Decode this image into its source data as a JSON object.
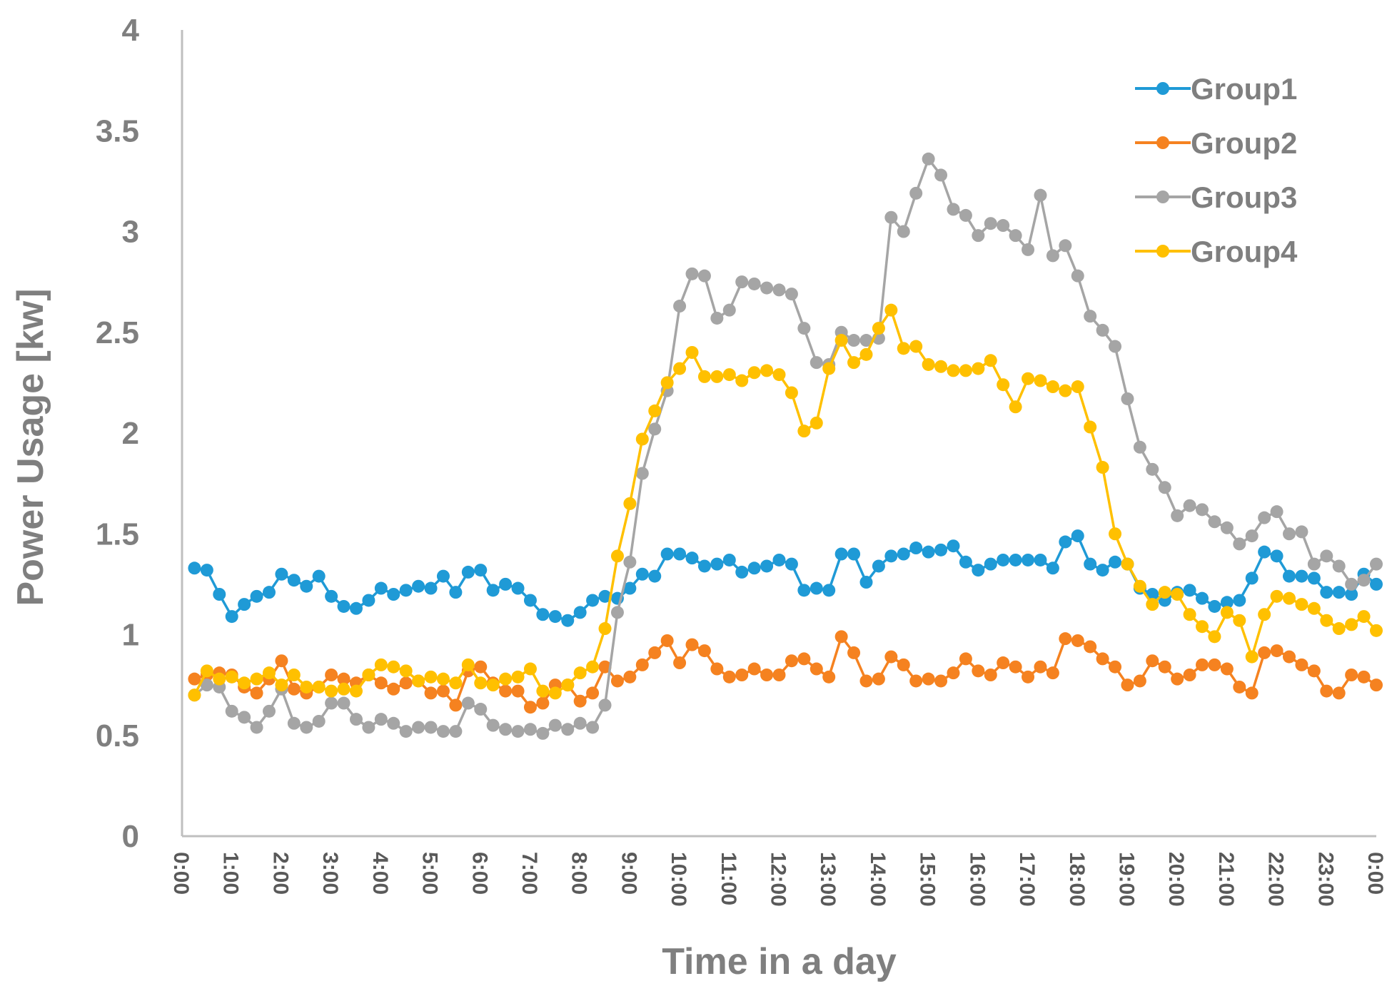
{
  "chart_data": {
    "type": "line",
    "title": "",
    "xlabel": "Time in a day",
    "ylabel": "Power Usage [kw]",
    "ylim": [
      0,
      4
    ],
    "yticks": [
      "0",
      "0.5",
      "1",
      "1.5",
      "2",
      "2.5",
      "3",
      "3.5",
      "4"
    ],
    "xticks": [
      "0:00",
      "1:00",
      "2:00",
      "3:00",
      "4:00",
      "5:00",
      "6:00",
      "7:00",
      "8:00",
      "9:00",
      "10:00",
      "11:00",
      "12:00",
      "13:00",
      "14:00",
      "15:00",
      "16:00",
      "17:00",
      "18:00",
      "19:00",
      "20:00",
      "21:00",
      "22:00",
      "23:00",
      "0:00"
    ],
    "grid": false,
    "legend_position": "top-right",
    "x_hours": [
      0.25,
      0.5,
      0.75,
      1,
      1.25,
      1.5,
      1.75,
      2,
      2.25,
      2.5,
      2.75,
      3,
      3.25,
      3.5,
      3.75,
      4,
      4.25,
      4.5,
      4.75,
      5,
      5.25,
      5.5,
      5.75,
      6,
      6.25,
      6.5,
      6.75,
      7,
      7.25,
      7.5,
      7.75,
      8,
      8.25,
      8.5,
      8.75,
      9,
      9.25,
      9.5,
      9.75,
      10,
      10.25,
      10.5,
      10.75,
      11,
      11.25,
      11.5,
      11.75,
      12,
      12.25,
      12.5,
      12.75,
      13,
      13.25,
      13.5,
      13.75,
      14,
      14.25,
      14.5,
      14.75,
      15,
      15.25,
      15.5,
      15.75,
      16,
      16.25,
      16.5,
      16.75,
      17,
      17.25,
      17.5,
      17.75,
      18,
      18.25,
      18.5,
      18.75,
      19,
      19.25,
      19.5,
      19.75,
      20,
      20.25,
      20.5,
      20.75,
      21,
      21.25,
      21.5,
      21.75,
      22,
      22.25,
      22.5,
      22.75,
      23,
      23.25,
      23.5,
      23.75,
      24
    ],
    "series": [
      {
        "name": "Group1",
        "color": "#1f9ad6",
        "values": [
          1.33,
          1.32,
          1.2,
          1.09,
          1.15,
          1.19,
          1.21,
          1.3,
          1.27,
          1.24,
          1.29,
          1.19,
          1.14,
          1.13,
          1.17,
          1.23,
          1.2,
          1.22,
          1.24,
          1.23,
          1.29,
          1.21,
          1.31,
          1.32,
          1.22,
          1.25,
          1.23,
          1.17,
          1.1,
          1.09,
          1.07,
          1.11,
          1.17,
          1.19,
          1.18,
          1.23,
          1.3,
          1.29,
          1.4,
          1.4,
          1.38,
          1.34,
          1.35,
          1.37,
          1.31,
          1.33,
          1.34,
          1.37,
          1.35,
          1.22,
          1.23,
          1.22,
          1.4,
          1.4,
          1.26,
          1.34,
          1.39,
          1.4,
          1.43,
          1.41,
          1.42,
          1.44,
          1.36,
          1.32,
          1.35,
          1.37,
          1.37,
          1.37,
          1.37,
          1.33,
          1.46,
          1.49,
          1.35,
          1.32,
          1.36,
          1.35,
          1.23,
          1.2,
          1.17,
          1.21,
          1.22,
          1.18,
          1.14,
          1.16,
          1.17,
          1.28,
          1.41,
          1.39,
          1.29,
          1.29,
          1.28,
          1.21,
          1.21,
          1.2,
          1.3,
          1.25
        ]
      },
      {
        "name": "Group2",
        "color": "#f58220",
        "values": [
          0.78,
          0.8,
          0.81,
          0.8,
          0.74,
          0.71,
          0.78,
          0.87,
          0.73,
          0.71,
          0.74,
          0.8,
          0.78,
          0.76,
          0.8,
          0.76,
          0.73,
          0.76,
          0.77,
          0.71,
          0.72,
          0.65,
          0.82,
          0.84,
          0.76,
          0.72,
          0.72,
          0.64,
          0.66,
          0.75,
          0.75,
          0.67,
          0.71,
          0.84,
          0.77,
          0.79,
          0.85,
          0.91,
          0.97,
          0.86,
          0.95,
          0.92,
          0.83,
          0.79,
          0.8,
          0.83,
          0.8,
          0.8,
          0.87,
          0.88,
          0.83,
          0.79,
          0.99,
          0.91,
          0.77,
          0.78,
          0.89,
          0.85,
          0.77,
          0.78,
          0.77,
          0.81,
          0.88,
          0.82,
          0.8,
          0.86,
          0.84,
          0.79,
          0.84,
          0.81,
          0.98,
          0.97,
          0.94,
          0.88,
          0.84,
          0.75,
          0.77,
          0.87,
          0.84,
          0.78,
          0.8,
          0.85,
          0.85,
          0.83,
          0.74,
          0.71,
          0.91,
          0.92,
          0.89,
          0.85,
          0.82,
          0.72,
          0.71,
          0.8,
          0.79,
          0.75
        ]
      },
      {
        "name": "Group3",
        "color": "#a5a5a5",
        "values": [
          0.7,
          0.75,
          0.74,
          0.62,
          0.59,
          0.54,
          0.62,
          0.73,
          0.56,
          0.54,
          0.57,
          0.66,
          0.66,
          0.58,
          0.54,
          0.58,
          0.56,
          0.52,
          0.54,
          0.54,
          0.52,
          0.52,
          0.66,
          0.63,
          0.55,
          0.53,
          0.52,
          0.53,
          0.51,
          0.55,
          0.53,
          0.56,
          0.54,
          0.65,
          1.11,
          1.36,
          1.8,
          2.02,
          2.21,
          2.63,
          2.79,
          2.78,
          2.57,
          2.61,
          2.75,
          2.74,
          2.72,
          2.71,
          2.69,
          2.52,
          2.35,
          2.34,
          2.5,
          2.46,
          2.46,
          2.47,
          3.07,
          3.0,
          3.19,
          3.36,
          3.28,
          3.11,
          3.08,
          2.98,
          3.04,
          3.03,
          2.98,
          2.91,
          3.18,
          2.88,
          2.93,
          2.78,
          2.58,
          2.51,
          2.43,
          2.17,
          1.93,
          1.82,
          1.73,
          1.59,
          1.64,
          1.62,
          1.56,
          1.53,
          1.45,
          1.49,
          1.58,
          1.61,
          1.5,
          1.51,
          1.35,
          1.39,
          1.34,
          1.25,
          1.27,
          1.35
        ]
      },
      {
        "name": "Group4",
        "color": "#ffc000",
        "values": [
          0.7,
          0.82,
          0.78,
          0.79,
          0.76,
          0.78,
          0.81,
          0.75,
          0.8,
          0.74,
          0.74,
          0.72,
          0.73,
          0.72,
          0.8,
          0.85,
          0.84,
          0.82,
          0.77,
          0.79,
          0.78,
          0.76,
          0.85,
          0.76,
          0.75,
          0.78,
          0.79,
          0.83,
          0.72,
          0.71,
          0.75,
          0.81,
          0.84,
          1.03,
          1.39,
          1.65,
          1.97,
          2.11,
          2.25,
          2.32,
          2.4,
          2.28,
          2.28,
          2.29,
          2.26,
          2.3,
          2.31,
          2.29,
          2.2,
          2.01,
          2.05,
          2.32,
          2.46,
          2.35,
          2.39,
          2.52,
          2.61,
          2.42,
          2.43,
          2.34,
          2.33,
          2.31,
          2.31,
          2.32,
          2.36,
          2.24,
          2.13,
          2.27,
          2.26,
          2.23,
          2.21,
          2.23,
          2.03,
          1.83,
          1.5,
          1.35,
          1.24,
          1.15,
          1.21,
          1.2,
          1.1,
          1.04,
          0.99,
          1.11,
          1.07,
          0.89,
          1.1,
          1.19,
          1.18,
          1.15,
          1.13,
          1.07,
          1.03,
          1.05,
          1.09,
          1.02
        ]
      }
    ]
  }
}
